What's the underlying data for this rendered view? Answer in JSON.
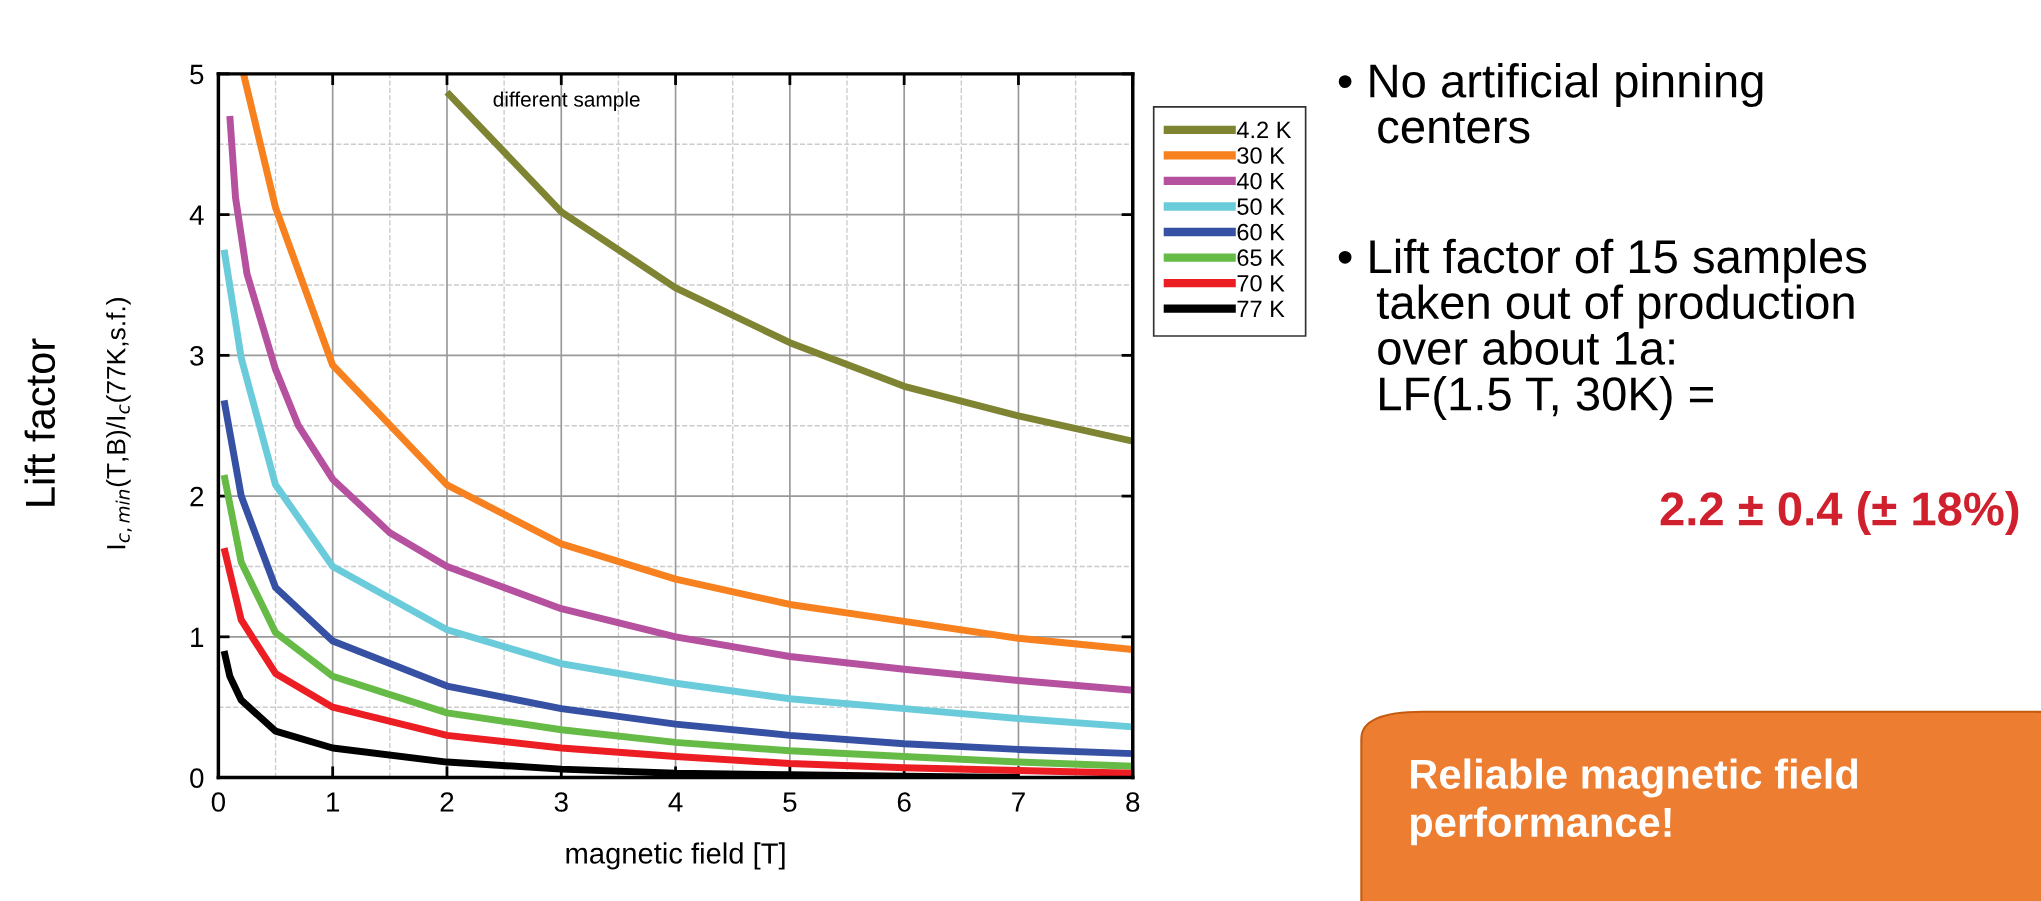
{
  "chart_data": {
    "type": "line",
    "xlabel": "magnetic field [T]",
    "ylabel": "Lift factor\nI$_{c,min}$(T,B)/I$_{c}$(77K,s.f.)",
    "xlim": [
      0,
      8
    ],
    "ylim": [
      0,
      5
    ],
    "xticks": [
      0,
      1,
      2,
      3,
      4,
      5,
      6,
      7,
      8
    ],
    "yticks": [
      0,
      1,
      2,
      3,
      4,
      5
    ],
    "grid": true,
    "legend": "top right",
    "line_style": "solid",
    "marker": "none",
    "series": [
      {
        "name": "4.2 K",
        "color": "#7f8433",
        "x": [
          2,
          3,
          4,
          5,
          6,
          7,
          8
        ],
        "values": [
          4.87,
          4.02,
          3.48,
          3.09,
          2.78,
          2.57,
          2.39
        ]
      },
      {
        "name": "30 K",
        "color": "#f7811f",
        "x": [
          0.22,
          0.5,
          1,
          2,
          3,
          4,
          5,
          6,
          7,
          8
        ],
        "values": [
          5.0,
          4.05,
          2.93,
          2.08,
          1.66,
          1.41,
          1.23,
          1.11,
          0.99,
          0.91
        ]
      },
      {
        "name": "40 K",
        "color": "#b5519f",
        "x": [
          0.1,
          0.15,
          0.25,
          0.5,
          0.7,
          1,
          1.5,
          2,
          3,
          4,
          5,
          6,
          7,
          8
        ],
        "values": [
          4.7,
          4.12,
          3.58,
          2.9,
          2.5,
          2.12,
          1.74,
          1.5,
          1.2,
          1.0,
          0.86,
          0.77,
          0.69,
          0.62
        ]
      },
      {
        "name": "50 K",
        "color": "#6acbdb",
        "x": [
          0.05,
          0.2,
          0.5,
          1,
          2,
          3,
          4,
          5,
          6,
          7,
          8
        ],
        "values": [
          3.75,
          2.98,
          2.08,
          1.5,
          1.05,
          0.81,
          0.67,
          0.56,
          0.49,
          0.42,
          0.36
        ]
      },
      {
        "name": "60 K",
        "color": "#3650a3",
        "x": [
          0.05,
          0.2,
          0.5,
          1,
          2,
          3,
          4,
          5,
          6,
          7,
          8
        ],
        "values": [
          2.68,
          2.0,
          1.35,
          0.97,
          0.65,
          0.49,
          0.38,
          0.3,
          0.24,
          0.2,
          0.17
        ]
      },
      {
        "name": "65 K",
        "color": "#66bb46",
        "x": [
          0.05,
          0.2,
          0.5,
          1,
          2,
          3,
          4,
          5,
          6,
          7,
          8
        ],
        "values": [
          2.15,
          1.53,
          1.03,
          0.72,
          0.46,
          0.34,
          0.25,
          0.19,
          0.15,
          0.11,
          0.08
        ]
      },
      {
        "name": "70 K",
        "color": "#ec1e24",
        "x": [
          0.05,
          0.2,
          0.5,
          1,
          2,
          3,
          4,
          5,
          6,
          7,
          8
        ],
        "values": [
          1.63,
          1.12,
          0.74,
          0.5,
          0.3,
          0.21,
          0.15,
          0.1,
          0.07,
          0.05,
          0.03
        ]
      },
      {
        "name": "77 K",
        "color": "#000000",
        "x": [
          0.05,
          0.1,
          0.2,
          0.5,
          1,
          2,
          3,
          4,
          5,
          6,
          7
        ],
        "values": [
          0.9,
          0.72,
          0.55,
          0.33,
          0.21,
          0.11,
          0.06,
          0.03,
          0.02,
          0.01,
          0.0
        ]
      }
    ],
    "annotations": [
      "different sample",
      "• No artificial pinning\n   centers",
      "• Lift factor of 15 samples\n   taken out of production\n   over about 1a:\n   LF(1.5 T, 30K) =",
      "2.2 ± 0.4 (± 18%)",
      "Reliable magnetic field\nperformance!"
    ]
  }
}
